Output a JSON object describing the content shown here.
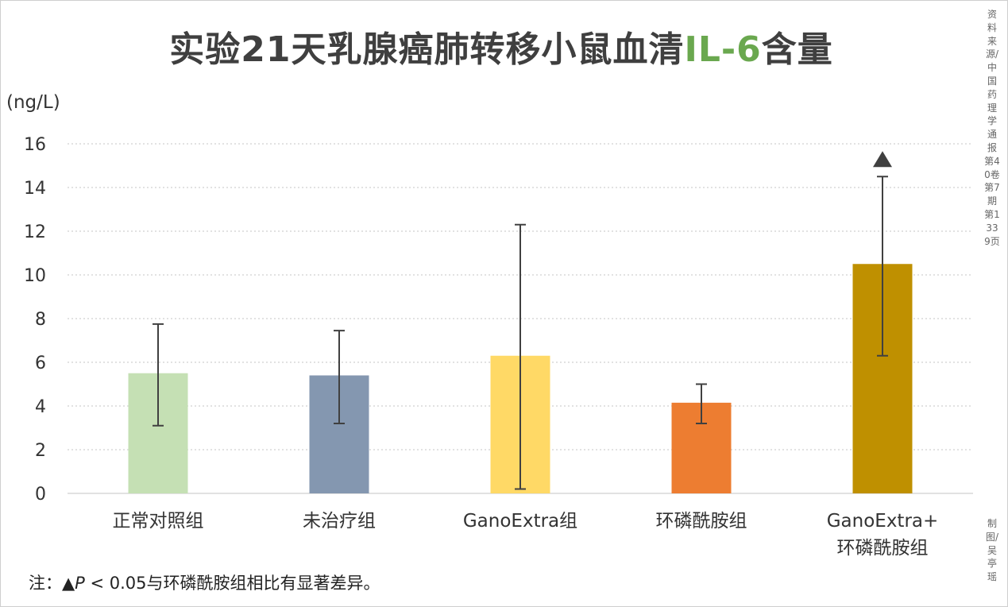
{
  "title": {
    "main": "实验21天乳腺癌肺转移小鼠血清",
    "accent": "IL-6",
    "suffix": "含量"
  },
  "side_notes": {
    "source": "资料来源/中国药理学通报第40卷第7期第1339页",
    "credit": "制图/吴亭瑶"
  },
  "footnote": {
    "prefix": "注：▲",
    "p": "P",
    "rest": " < 0.05与环磷酰胺组相比有显著差异。"
  },
  "chart_data": {
    "type": "bar",
    "ylabel": "(ng/L)",
    "ylim": [
      0,
      16
    ],
    "yticks": [
      0,
      2,
      4,
      6,
      8,
      10,
      12,
      14,
      16
    ],
    "grid": true,
    "legend": "none",
    "categories": [
      [
        "正常对照组"
      ],
      [
        "未治疗组"
      ],
      [
        "GanoExtra组"
      ],
      [
        "环磷酰胺组"
      ],
      [
        "GanoExtra+",
        "环磷酰胺组"
      ]
    ],
    "values": [
      5.5,
      5.4,
      6.3,
      4.15,
      10.5
    ],
    "error_low": [
      3.1,
      3.2,
      0.2,
      3.2,
      6.3
    ],
    "error_high": [
      7.75,
      7.45,
      12.3,
      5.0,
      14.5
    ],
    "colors": [
      "#c5e0b4",
      "#8497b0",
      "#ffd966",
      "#ed7d31",
      "#bf9000"
    ],
    "significance_markers": [
      "",
      "",
      "",
      "",
      "▲"
    ]
  }
}
